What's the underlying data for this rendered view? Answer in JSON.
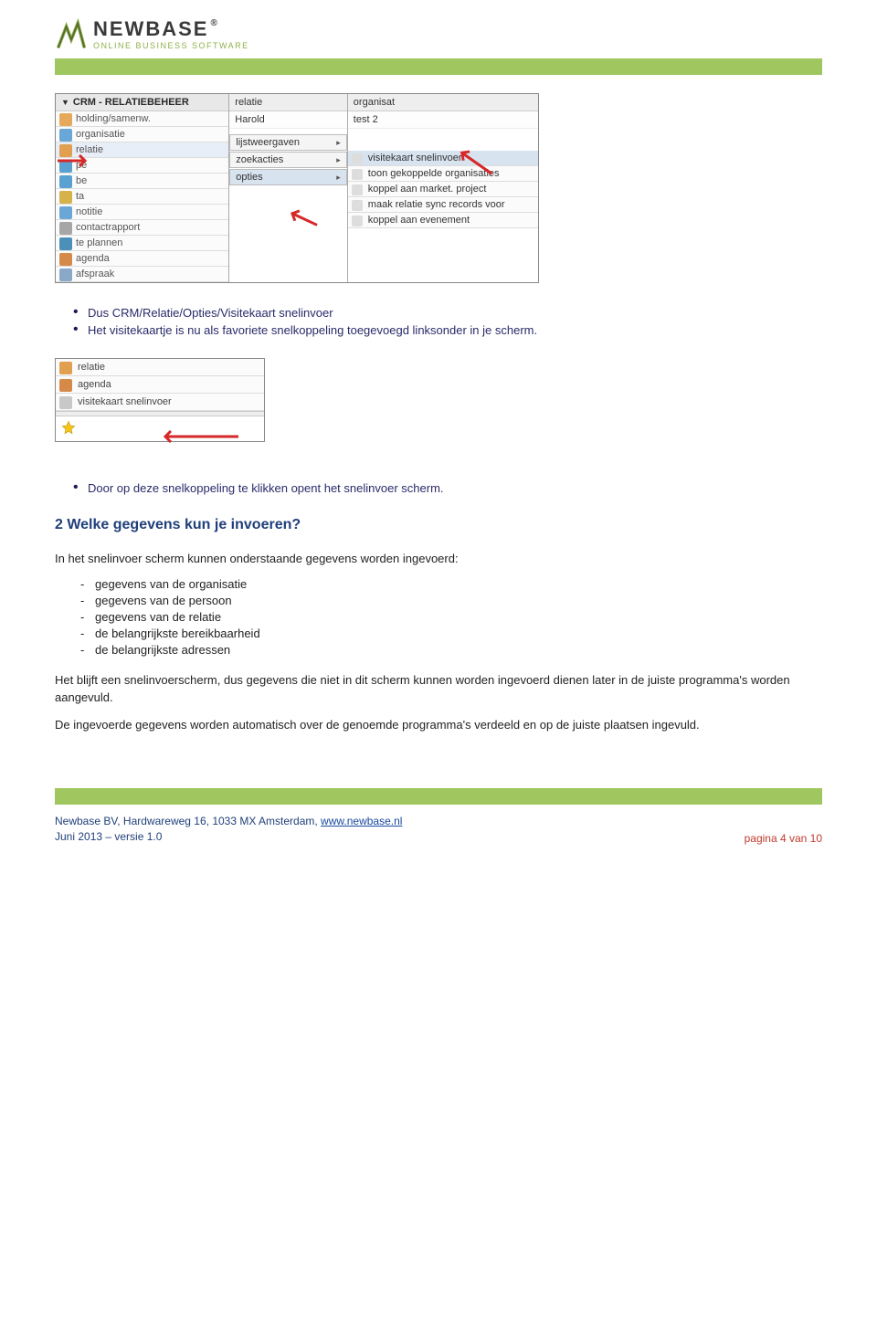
{
  "logo": {
    "brand": "NEWBASE",
    "tagline": "ONLINE BUSINESS SOFTWARE"
  },
  "colors": {
    "accent_green": "#9fc65f",
    "heading_blue": "#1f3f7a",
    "body_blue": "#2a2a6a",
    "link_blue": "#1a4aa0",
    "page_red": "#c0392b",
    "arrow_red": "#d62828"
  },
  "shot1": {
    "header": "CRM - RELATIEBEHEER",
    "tree": [
      {
        "label": "holding/samenw.",
        "icon": "#e6a85a"
      },
      {
        "label": "organisatie",
        "icon": "#6aa7d6"
      },
      {
        "label": "relatie",
        "icon": "#e0a050",
        "hl": true
      },
      {
        "label": "pe",
        "icon": "#5aa0d0"
      },
      {
        "label": "be",
        "icon": "#5aa0d0"
      },
      {
        "label": "ta",
        "icon": "#d6b24a"
      },
      {
        "label": "notitie",
        "icon": "#6aa7d6"
      },
      {
        "label": "contactrapport",
        "icon": "#a6a6a6"
      },
      {
        "label": "te plannen",
        "icon": "#4a90b8"
      },
      {
        "label": "agenda",
        "icon": "#d68a4a"
      },
      {
        "label": "afspraak",
        "icon": "#8aa8c8"
      }
    ],
    "mid_head": "relatie",
    "mid_cell": "Harold",
    "menu": [
      {
        "label": "lijstweergaven",
        "sel": false
      },
      {
        "label": "zoekacties",
        "sel": false
      },
      {
        "label": "opties",
        "sel": true
      }
    ],
    "right_head": "organisat",
    "right_cell": "test 2",
    "submenu": [
      {
        "label": "visitekaart snelinvoer",
        "sel": true
      },
      {
        "label": "toon gekoppelde organisaties",
        "sel": false
      },
      {
        "label": "koppel aan market. project",
        "sel": false
      },
      {
        "label": "maak relatie sync records voor",
        "sel": false
      },
      {
        "label": "koppel aan evenement",
        "sel": false
      }
    ]
  },
  "bullets_top": [
    "Dus CRM/Relatie/Opties/Visitekaart snelinvoer",
    "Het visitekaartje is nu als favoriete snelkoppeling toegevoegd linksonder in je scherm."
  ],
  "shot2": {
    "rows": [
      {
        "label": "relatie",
        "icon": "#e0a050"
      },
      {
        "label": "agenda",
        "icon": "#d68a4a"
      },
      {
        "label": "visitekaart snelinvoer",
        "icon": "#c8c8c8"
      }
    ]
  },
  "bullets_mid": [
    "Door op deze snelkoppeling te klikken opent het snelinvoer scherm."
  ],
  "section2": {
    "title": "2  Welke gegevens kun je invoeren?",
    "intro": "In het snelinvoer scherm kunnen onderstaande gegevens worden ingevoerd:",
    "items": [
      "gegevens van de organisatie",
      "gegevens van de persoon",
      "gegevens van de relatie",
      "de belangrijkste bereikbaarheid",
      "de belangrijkste adressen"
    ],
    "para1": "Het blijft een snelinvoerscherm, dus gegevens die niet in dit scherm kunnen worden ingevoerd dienen later in de juiste programma's worden aangevuld.",
    "para2": "De ingevoerde gegevens worden automatisch over de genoemde programma's verdeeld en op de juiste plaatsen ingevuld."
  },
  "footer": {
    "line1_a": "Newbase BV, Hardwareweg 16, 1033 MX Amsterdam, ",
    "line1_link": "www.newbase.nl",
    "line2": "Juni 2013 – versie 1.0",
    "page": "pagina 4 van 10"
  }
}
